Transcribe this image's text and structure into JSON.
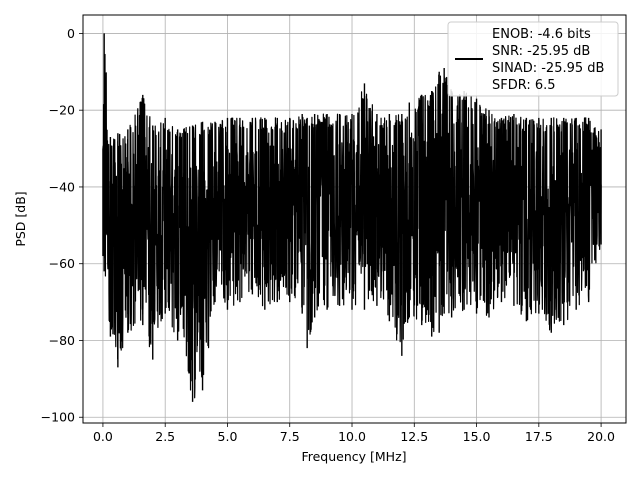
{
  "chart_data": {
    "type": "line",
    "title": "",
    "xlabel": "Frequency [MHz]",
    "ylabel": "PSD [dB]",
    "xlim": [
      -0.8,
      21.0
    ],
    "ylim": [
      -101.5,
      4.8
    ],
    "xticks": [
      0.0,
      2.5,
      5.0,
      7.5,
      10.0,
      12.5,
      15.0,
      17.5,
      20.0
    ],
    "xtick_labels": [
      "0.0",
      "2.5",
      "5.0",
      "7.5",
      "10.0",
      "12.5",
      "15.0",
      "17.5",
      "20.0"
    ],
    "yticks": [
      0,
      -20,
      -40,
      -60,
      -80,
      -100
    ],
    "ytick_labels": [
      "0",
      "−20",
      "−40",
      "−60",
      "−80",
      "−100"
    ],
    "grid": true,
    "legend_position": "top-right",
    "series_color": "#000000",
    "legend_entries": [
      "ENOB: -4.6 bits",
      "SNR: -25.95 dB",
      "SINAD: -25.95 dB",
      "SFDR: 6.5"
    ],
    "series": [
      {
        "points_note": "",
        "x": [
          0.0,
          0.05,
          0.3,
          0.6,
          1.0,
          1.6,
          2.0,
          2.5,
          3.0,
          3.6,
          4.0,
          4.5,
          5.0,
          5.5,
          6.0,
          6.5,
          7.0,
          7.5,
          8.0,
          8.2,
          8.5,
          9.0,
          9.5,
          10.0,
          10.5,
          11.0,
          11.5,
          12.0,
          12.3,
          12.8,
          13.2,
          13.5,
          13.7,
          14.0,
          14.5,
          15.0,
          15.5,
          16.0,
          16.5,
          17.0,
          17.5,
          18.0,
          18.5,
          19.0,
          19.5,
          20.0
        ],
        "upper": [
          -30,
          0,
          -27,
          -26,
          -25,
          -16,
          -24,
          -22,
          -25,
          -24,
          -23,
          -23,
          -22,
          -22,
          -22,
          -22,
          -22,
          -22,
          -21,
          -22,
          -21,
          -21,
          -21,
          -21,
          -13,
          -21,
          -21,
          -21,
          -18,
          -16,
          -15,
          -10,
          -9,
          -15,
          -15,
          -17,
          -20,
          -22,
          -21,
          -22,
          -22,
          -22,
          -22,
          -22,
          -22,
          -25
        ],
        "lower": [
          -58,
          -62,
          -79,
          -87,
          -78,
          -76,
          -85,
          -73,
          -80,
          -96,
          -93,
          -70,
          -72,
          -70,
          -68,
          -72,
          -70,
          -70,
          -73,
          -82,
          -74,
          -72,
          -71,
          -72,
          -72,
          -71,
          -75,
          -84,
          -74,
          -76,
          -79,
          -78,
          -73,
          -74,
          -72,
          -73,
          -74,
          -70,
          -71,
          -75,
          -73,
          -78,
          -76,
          -72,
          -70,
          -55
        ]
      }
    ]
  }
}
